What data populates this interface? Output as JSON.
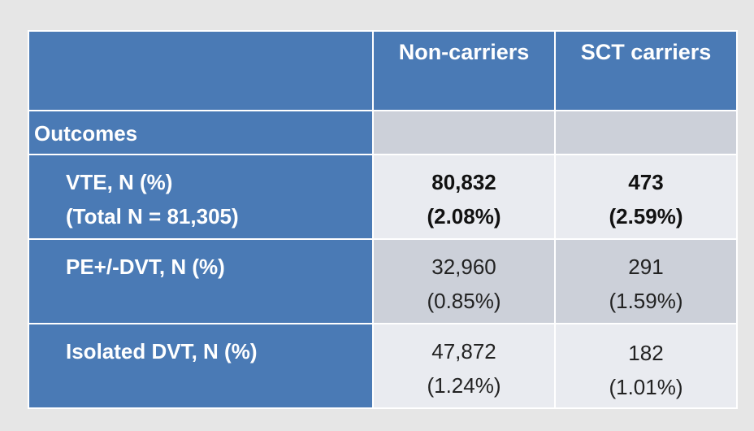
{
  "header": {
    "col1": "Non-carriers",
    "col2": "SCT carriers"
  },
  "section": {
    "label": "Outcomes"
  },
  "rows": [
    {
      "label_line1": "VTE, N (%)",
      "label_line2": "(Total N = 81,305)",
      "noncarriers_count": "80,832",
      "noncarriers_pct": "(2.08%)",
      "sct_count": "473",
      "sct_pct": "(2.59%)"
    },
    {
      "label_line1": "PE+/-DVT, N (%)",
      "label_line2": "",
      "noncarriers_count": "32,960",
      "noncarriers_pct": "(0.85%)",
      "sct_count": "291",
      "sct_pct": "(1.59%)"
    },
    {
      "label_line1": "Isolated DVT, N (%)",
      "label_line2": "",
      "noncarriers_count": "47,872",
      "noncarriers_pct": "(1.24%)",
      "sct_count": "182",
      "sct_pct": "(1.01%)"
    }
  ],
  "colors": {
    "header_blue": "#4a7ab5",
    "row_light": "#e9ebf0",
    "row_dark": "#ccd0d9",
    "background": "#e6e6e6"
  }
}
